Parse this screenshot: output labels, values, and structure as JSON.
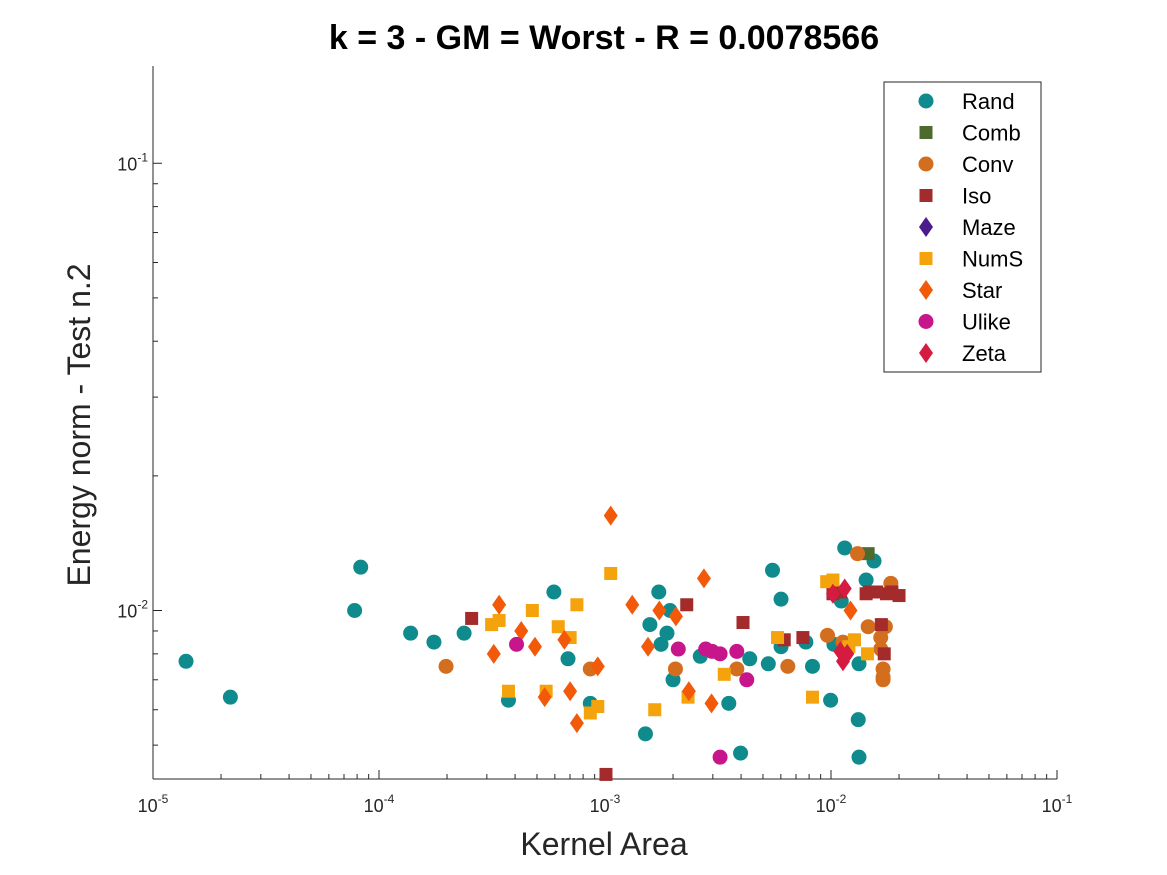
{
  "chart_data": {
    "type": "scatter",
    "title": "k = 3 - GM = Worst - R = 0.0078566",
    "xlabel": "Kernel Area",
    "ylabel": "Energy norm - Test n.2",
    "xscale": "log",
    "yscale": "log",
    "xlim": [
      1e-05,
      0.1
    ],
    "ylim": [
      0.0042,
      0.165
    ],
    "x_ticks": [
      {
        "base": "10",
        "exp": "-5",
        "value": 1e-05
      },
      {
        "base": "10",
        "exp": "-4",
        "value": 0.0001
      },
      {
        "base": "10",
        "exp": "-3",
        "value": 0.001
      },
      {
        "base": "10",
        "exp": "-2",
        "value": 0.01
      },
      {
        "base": "10",
        "exp": "-1",
        "value": 0.1
      }
    ],
    "y_ticks": [
      {
        "base": "10",
        "exp": "-2",
        "value": 0.01
      },
      {
        "base": "10",
        "exp": "-1",
        "value": 0.1
      }
    ],
    "grid": false,
    "legend_position": "top-right",
    "series": [
      {
        "name": "Rand",
        "marker": "circle",
        "color": "#0f8b8d",
        "points": [
          [
            1.4e-05,
            0.0077
          ],
          [
            2.2e-05,
            0.0064
          ],
          [
            7.8e-05,
            0.01
          ],
          [
            8.3e-05,
            0.0125
          ],
          [
            0.000138,
            0.0089
          ],
          [
            0.000175,
            0.0085
          ],
          [
            0.000238,
            0.0089
          ],
          [
            0.000374,
            0.0063
          ],
          [
            0.000594,
            0.011
          ],
          [
            0.000686,
            0.0078
          ],
          [
            0.000861,
            0.0062
          ],
          [
            0.00151,
            0.0053
          ],
          [
            0.00158,
            0.0093
          ],
          [
            0.00173,
            0.011
          ],
          [
            0.00177,
            0.0084
          ],
          [
            0.00188,
            0.0089
          ],
          [
            0.00194,
            0.01
          ],
          [
            0.002,
            0.007
          ],
          [
            0.00264,
            0.0079
          ],
          [
            0.00353,
            0.0062
          ],
          [
            0.00398,
            0.0048
          ],
          [
            0.00437,
            0.0078
          ],
          [
            0.00528,
            0.0076
          ],
          [
            0.00551,
            0.0123
          ],
          [
            0.00601,
            0.0106
          ],
          [
            0.00601,
            0.0083
          ],
          [
            0.00774,
            0.0085
          ],
          [
            0.00828,
            0.0075
          ],
          [
            0.00996,
            0.0063
          ],
          [
            0.0103,
            0.0084
          ],
          [
            0.0111,
            0.0105
          ],
          [
            0.0115,
            0.0138
          ],
          [
            0.0132,
            0.0057
          ],
          [
            0.0133,
            0.0047
          ],
          [
            0.0133,
            0.0076
          ],
          [
            0.0143,
            0.0117
          ],
          [
            0.0155,
            0.0129
          ]
        ]
      },
      {
        "name": "Comb",
        "marker": "square",
        "color": "#4d6b2f",
        "points": [
          [
            0.0146,
            0.0134
          ]
        ]
      },
      {
        "name": "Conv",
        "marker": "circle",
        "color": "#d46e1f",
        "points": [
          [
            0.000198,
            0.0075
          ],
          [
            0.000861,
            0.0074
          ],
          [
            0.00205,
            0.0074
          ],
          [
            0.00383,
            0.0074
          ],
          [
            0.00644,
            0.0075
          ],
          [
            0.00965,
            0.0088
          ],
          [
            0.0113,
            0.0085
          ],
          [
            0.0131,
            0.0134
          ],
          [
            0.0146,
            0.0092
          ],
          [
            0.0166,
            0.0082
          ],
          [
            0.0166,
            0.0087
          ],
          [
            0.017,
            0.007
          ],
          [
            0.017,
            0.0071
          ],
          [
            0.017,
            0.0074
          ],
          [
            0.0174,
            0.0092
          ],
          [
            0.0184,
            0.0115
          ]
        ]
      },
      {
        "name": "Iso",
        "marker": "square",
        "color": "#a32b2b",
        "points": [
          [
            0.000257,
            0.0096
          ],
          [
            0.00101,
            0.0043
          ],
          [
            0.0023,
            0.0103
          ],
          [
            0.00408,
            0.0094
          ],
          [
            0.00621,
            0.0086
          ],
          [
            0.00751,
            0.0087
          ],
          [
            0.0102,
            0.0109
          ],
          [
            0.011,
            0.011
          ],
          [
            0.0143,
            0.0109
          ],
          [
            0.0148,
            0.011
          ],
          [
            0.0159,
            0.011
          ],
          [
            0.0167,
            0.0093
          ],
          [
            0.0172,
            0.008
          ],
          [
            0.0176,
            0.0109
          ],
          [
            0.0186,
            0.011
          ],
          [
            0.02,
            0.0108
          ]
        ]
      },
      {
        "name": "Maze",
        "marker": "diamond",
        "color": "#4b1a8c",
        "points": []
      },
      {
        "name": "NumS",
        "marker": "square",
        "color": "#f5a30c",
        "points": [
          [
            0.000315,
            0.0093
          ],
          [
            0.00034,
            0.0095
          ],
          [
            0.000374,
            0.0066
          ],
          [
            0.000477,
            0.01
          ],
          [
            0.000549,
            0.0066
          ],
          [
            0.000621,
            0.0092
          ],
          [
            0.000701,
            0.0087
          ],
          [
            0.000751,
            0.0103
          ],
          [
            0.000861,
            0.0059
          ],
          [
            0.000929,
            0.0061
          ],
          [
            0.00106,
            0.0121
          ],
          [
            0.00166,
            0.006
          ],
          [
            0.00233,
            0.0064
          ],
          [
            0.00337,
            0.0072
          ],
          [
            0.0058,
            0.0087
          ],
          [
            0.00828,
            0.0064
          ],
          [
            0.00957,
            0.0116
          ],
          [
            0.0102,
            0.0117
          ],
          [
            0.012,
            0.0083
          ],
          [
            0.0127,
            0.0086
          ],
          [
            0.0145,
            0.008
          ]
        ]
      },
      {
        "name": "Star",
        "marker": "diamond",
        "color": "#f25a0a",
        "points": [
          [
            0.000322,
            0.008
          ],
          [
            0.00034,
            0.0103
          ],
          [
            0.000426,
            0.009
          ],
          [
            0.00049,
            0.0083
          ],
          [
            0.000541,
            0.0064
          ],
          [
            0.000661,
            0.0086
          ],
          [
            0.000701,
            0.0066
          ],
          [
            0.000751,
            0.0056
          ],
          [
            0.000929,
            0.0075
          ],
          [
            0.00106,
            0.0163
          ],
          [
            0.00132,
            0.0103
          ],
          [
            0.00155,
            0.0083
          ],
          [
            0.00174,
            0.01
          ],
          [
            0.00206,
            0.0097
          ],
          [
            0.00235,
            0.0066
          ],
          [
            0.00274,
            0.0118
          ],
          [
            0.00296,
            0.0062
          ],
          [
            0.0122,
            0.01
          ]
        ]
      },
      {
        "name": "Ulike",
        "marker": "circle",
        "color": "#c7168c",
        "points": [
          [
            0.000406,
            0.0084
          ],
          [
            0.00211,
            0.0082
          ],
          [
            0.00279,
            0.0082
          ],
          [
            0.00298,
            0.0081
          ],
          [
            0.00323,
            0.0047
          ],
          [
            0.00323,
            0.008
          ],
          [
            0.00383,
            0.0081
          ],
          [
            0.00424,
            0.007
          ]
        ]
      },
      {
        "name": "Zeta",
        "marker": "diamond",
        "color": "#d61b41",
        "points": [
          [
            0.0102,
            0.0109
          ],
          [
            0.011,
            0.0081
          ],
          [
            0.0113,
            0.0077
          ],
          [
            0.0115,
            0.0112
          ],
          [
            0.0118,
            0.008
          ]
        ]
      }
    ]
  }
}
